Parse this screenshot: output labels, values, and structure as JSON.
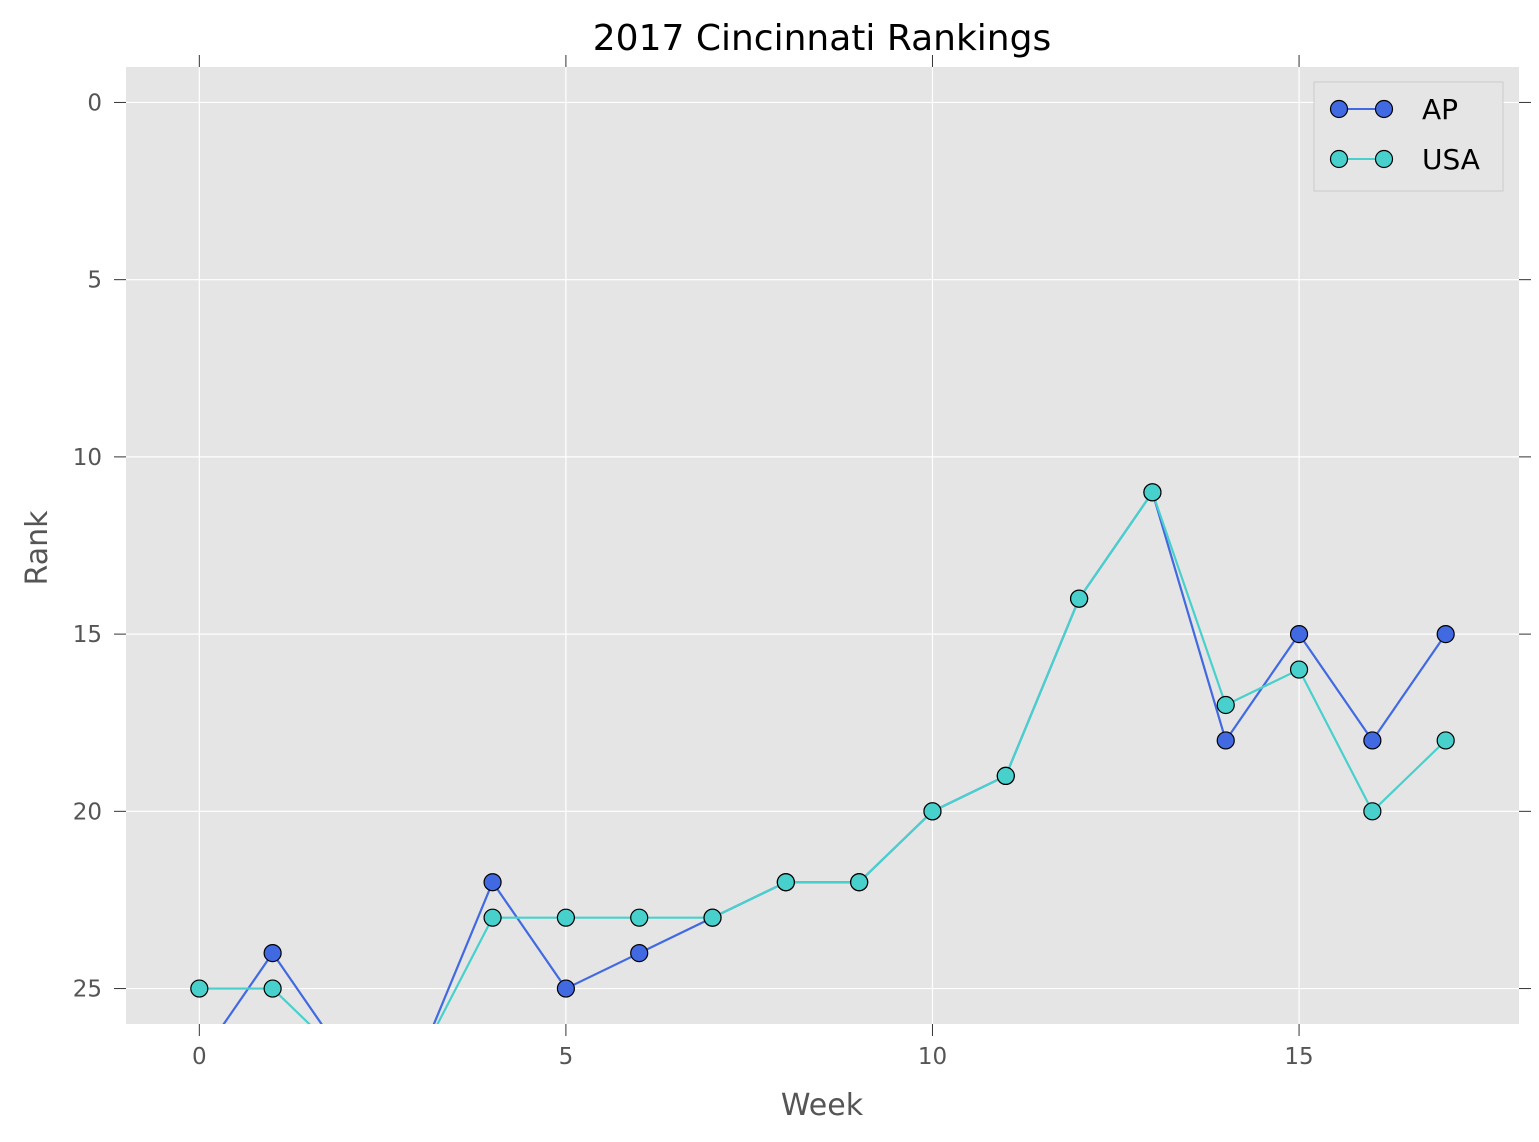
{
  "chart_data": {
    "type": "line",
    "title": "2017 Cincinnati Rankings",
    "xlabel": "Week",
    "ylabel": "Rank",
    "xlim": [
      -1,
      18
    ],
    "ylim": [
      26,
      -1
    ],
    "y_inverted": true,
    "xticks": [
      0,
      5,
      10,
      15
    ],
    "yticks": [
      0,
      5,
      10,
      15,
      20,
      25
    ],
    "grid": true,
    "legend_position": "top-right",
    "colors": {
      "background": "#e5e5e5",
      "grid": "#ffffff"
    },
    "series": [
      {
        "name": "AP",
        "color": "#4169e1",
        "x": [
          0,
          1,
          2,
          3,
          4,
          5,
          6,
          7,
          8,
          9,
          10,
          11,
          12,
          13,
          14,
          15,
          16,
          17
        ],
        "y": [
          27,
          24,
          27,
          27,
          22,
          25,
          24,
          23,
          22,
          22,
          20,
          19,
          14,
          11,
          18,
          15,
          18,
          15
        ]
      },
      {
        "name": "USA",
        "color": "#48d1cc",
        "x": [
          0,
          1,
          2,
          3,
          4,
          5,
          6,
          7,
          8,
          9,
          10,
          11,
          12,
          13,
          14,
          15,
          16,
          17
        ],
        "y": [
          25,
          25,
          27,
          27,
          23,
          23,
          23,
          23,
          22,
          22,
          20,
          19,
          14,
          11,
          17,
          16,
          20,
          18
        ]
      }
    ]
  }
}
